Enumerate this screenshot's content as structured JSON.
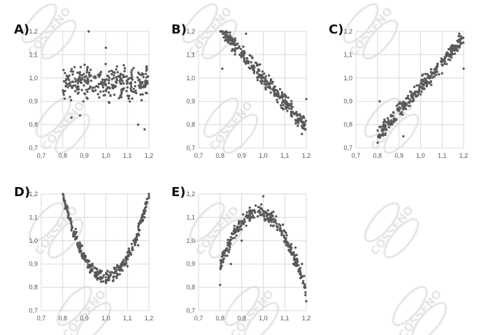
{
  "watermark_text": "COSSENO",
  "colors": {
    "point": "#595959",
    "grid": "#d9d9d9",
    "watermark": "#e6e6e6"
  },
  "chart_data": [
    {
      "panel": "A)",
      "type": "scatter",
      "xlim": [
        0.7,
        1.2
      ],
      "ylim": [
        0.7,
        1.2
      ],
      "xticks": [
        "0,7",
        "0,8",
        "0,9",
        "1,0",
        "1,1",
        "1,2"
      ],
      "yticks": [
        "0,7",
        "0,8",
        "0,9",
        "1,0",
        "1,1",
        "1,2"
      ],
      "pattern": "no correlation",
      "n": 320,
      "grid": true,
      "sample_points": [
        [
          0.84,
          0.83
        ],
        [
          0.88,
          0.84
        ],
        [
          0.92,
          1.2
        ],
        [
          0.95,
          1.0
        ],
        [
          1.0,
          1.13
        ],
        [
          1.05,
          0.98
        ],
        [
          1.1,
          0.96
        ],
        [
          1.15,
          0.8
        ],
        [
          1.18,
          0.78
        ],
        [
          1.19,
          1.05
        ]
      ]
    },
    {
      "panel": "B)",
      "type": "scatter",
      "xlim": [
        0.7,
        1.2
      ],
      "ylim": [
        0.7,
        1.2
      ],
      "xticks": [
        "0,7",
        "0,8",
        "0,9",
        "1,0",
        "1,1",
        "1,2"
      ],
      "yticks": [
        "0,7",
        "0,8",
        "0,9",
        "1,0",
        "1,1",
        "1,2"
      ],
      "pattern": "negative linear correlation",
      "n": 320,
      "grid": true,
      "sample_points": [
        [
          0.81,
          1.04
        ],
        [
          0.86,
          1.12
        ],
        [
          0.92,
          1.19
        ],
        [
          0.95,
          1.05
        ],
        [
          1.0,
          1.0
        ],
        [
          1.05,
          0.96
        ],
        [
          1.1,
          0.93
        ],
        [
          1.15,
          0.82
        ],
        [
          1.18,
          0.76
        ],
        [
          1.2,
          0.91
        ]
      ]
    },
    {
      "panel": "C)",
      "type": "scatter",
      "xlim": [
        0.7,
        1.2
      ],
      "ylim": [
        0.7,
        1.2
      ],
      "xticks": [
        "0,7",
        "0,8",
        "0,9",
        "1,0",
        "1,1",
        "1,2"
      ],
      "yticks": [
        "0,7",
        "0,8",
        "0,9",
        "1,0",
        "1,1",
        "1,2"
      ],
      "pattern": "positive linear correlation",
      "n": 320,
      "grid": true,
      "sample_points": [
        [
          0.81,
          0.9
        ],
        [
          0.86,
          0.8
        ],
        [
          0.92,
          0.75
        ],
        [
          0.95,
          0.88
        ],
        [
          1.0,
          0.93
        ],
        [
          1.05,
          0.97
        ],
        [
          1.1,
          1.02
        ],
        [
          1.15,
          1.12
        ],
        [
          1.18,
          1.19
        ],
        [
          1.2,
          1.04
        ]
      ]
    },
    {
      "panel": "D)",
      "type": "scatter",
      "xlim": [
        0.7,
        1.2
      ],
      "ylim": [
        0.7,
        1.2
      ],
      "xticks": [
        "0,7",
        "0,8",
        "0,9",
        "1,0",
        "1,1",
        "1,2"
      ],
      "yticks": [
        "0,7",
        "0,8",
        "0,9",
        "1,0",
        "1,1",
        "1,2"
      ],
      "pattern": "U-shaped (quadratic, opening upward)",
      "n": 320,
      "grid": true,
      "sample_points": [
        [
          0.82,
          1.13
        ],
        [
          0.86,
          1.05
        ],
        [
          0.9,
          0.92
        ],
        [
          0.95,
          0.85
        ],
        [
          1.0,
          0.83
        ],
        [
          1.05,
          0.84
        ],
        [
          1.1,
          0.89
        ],
        [
          1.15,
          0.98
        ],
        [
          1.18,
          1.1
        ],
        [
          1.2,
          1.19
        ]
      ]
    },
    {
      "panel": "E)",
      "type": "scatter",
      "xlim": [
        0.7,
        1.2
      ],
      "ylim": [
        0.7,
        1.2
      ],
      "xticks": [
        "0,7",
        "0,8",
        "0,9",
        "1,0",
        "1,1",
        "1,2"
      ],
      "yticks": [
        "0,7",
        "0,8",
        "0,9",
        "1,0",
        "1,1",
        "1,2"
      ],
      "pattern": "inverted U-shaped (quadratic, opening downward)",
      "n": 320,
      "grid": true,
      "sample_points": [
        [
          0.8,
          0.81
        ],
        [
          0.85,
          0.9
        ],
        [
          0.9,
          1.0
        ],
        [
          0.95,
          1.1
        ],
        [
          1.0,
          1.19
        ],
        [
          1.05,
          1.08
        ],
        [
          1.1,
          1.04
        ],
        [
          1.15,
          0.97
        ],
        [
          1.18,
          0.9
        ],
        [
          1.2,
          0.74
        ]
      ]
    }
  ]
}
